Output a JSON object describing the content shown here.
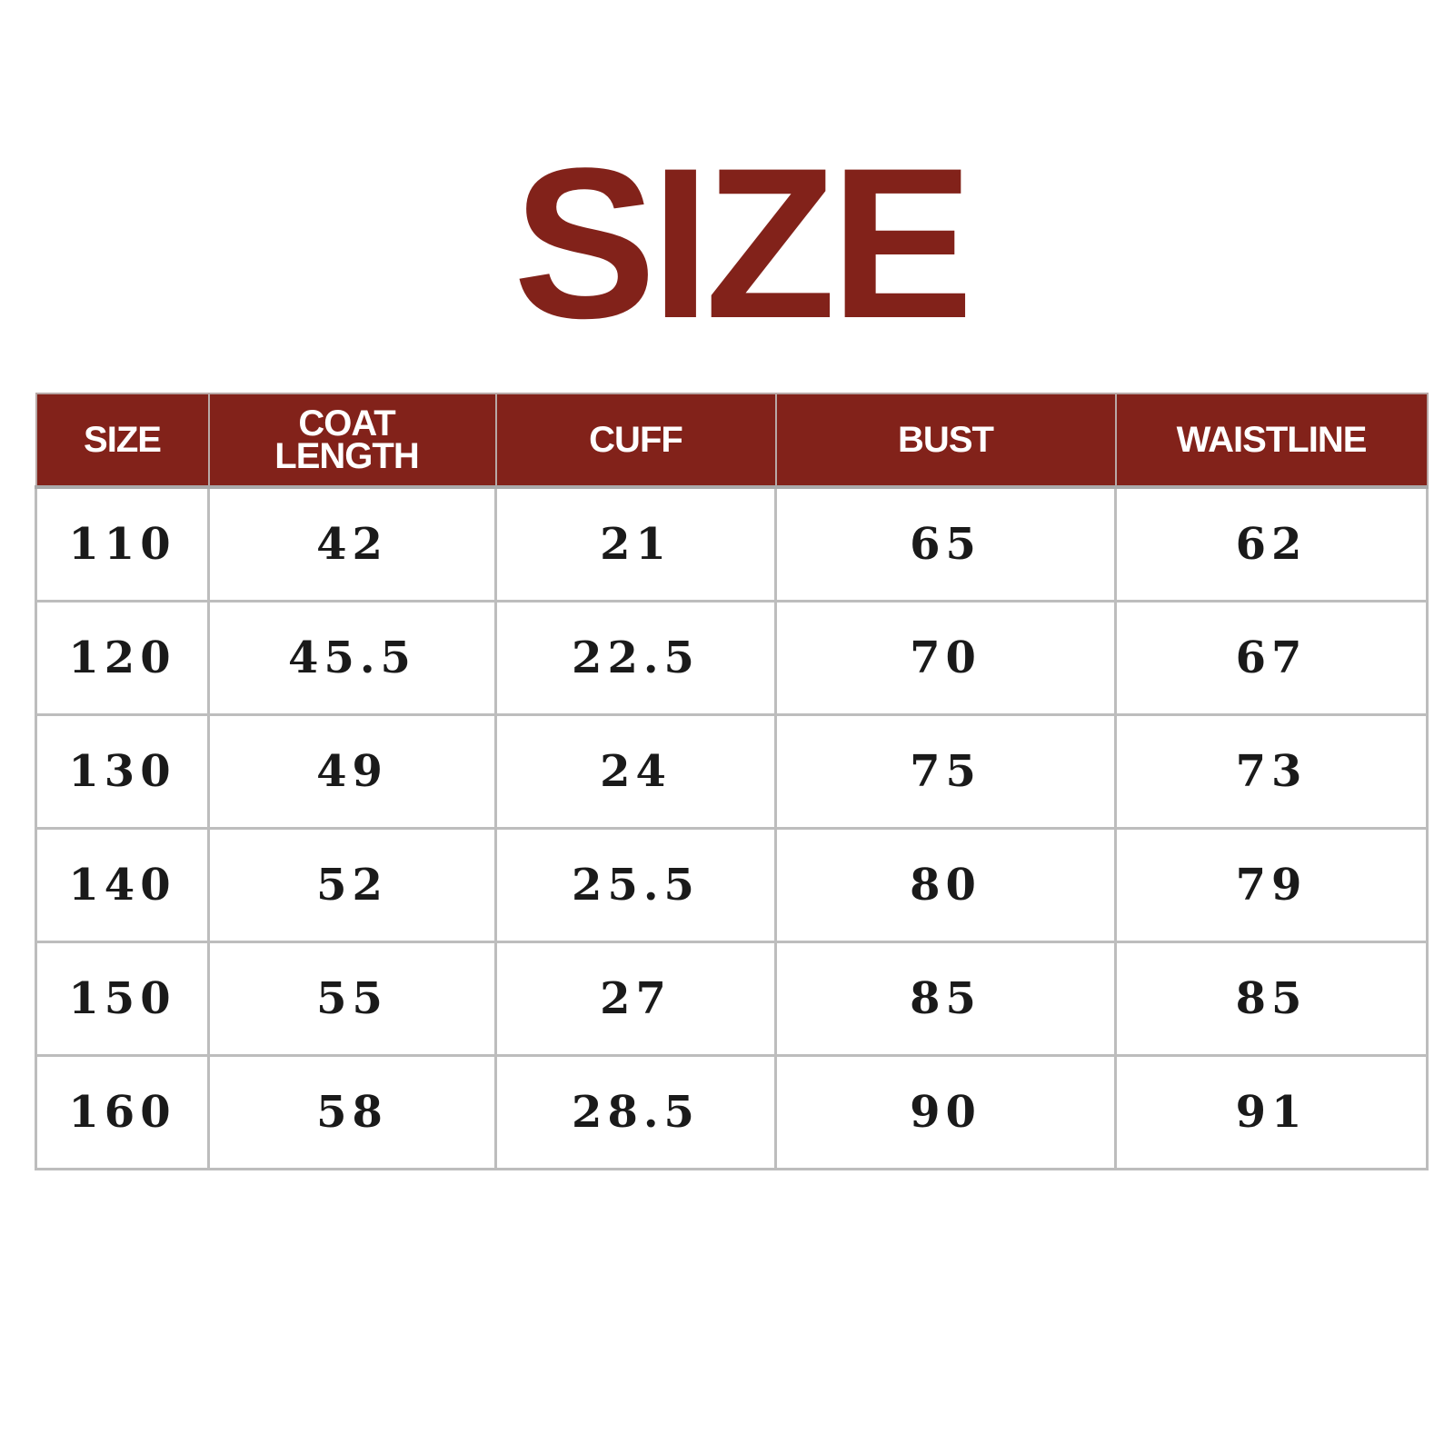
{
  "title": "SIZE",
  "colors": {
    "accent": "#82221a",
    "grid": "#bdbdbd"
  },
  "table": {
    "headers": [
      "SIZE",
      "COAT LENGTH",
      "CUFF",
      "BUST",
      "WAISTLINE"
    ],
    "rows": [
      [
        "110",
        "42",
        "21",
        "65",
        "62"
      ],
      [
        "120",
        "45.5",
        "22.5",
        "70",
        "67"
      ],
      [
        "130",
        "49",
        "24",
        "75",
        "73"
      ],
      [
        "140",
        "52",
        "25.5",
        "80",
        "79"
      ],
      [
        "150",
        "55",
        "27",
        "85",
        "85"
      ],
      [
        "160",
        "58",
        "28.5",
        "90",
        "91"
      ]
    ]
  }
}
